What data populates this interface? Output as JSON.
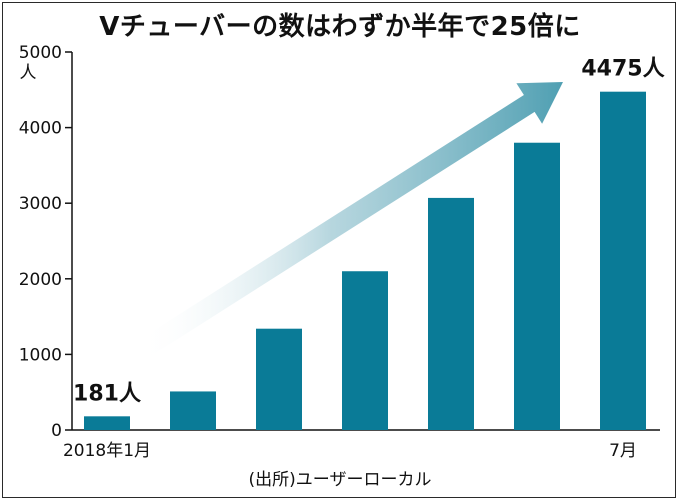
{
  "chart_data": {
    "type": "bar",
    "title": "Vチューバーの数はわずか半年で25倍に",
    "unit_label": "人",
    "categories": [
      "2018年1月",
      "",
      "",
      "",
      "",
      "",
      "7月"
    ],
    "values": [
      181,
      510,
      1340,
      2100,
      3070,
      3800,
      4475
    ],
    "data_labels": [
      {
        "index": 0,
        "text": "181人"
      },
      {
        "index": 6,
        "text": "4475人"
      }
    ],
    "yticks": [
      "0",
      "1000",
      "2000",
      "3000",
      "4000",
      "5000"
    ],
    "ylim": [
      0,
      5000
    ],
    "bar_color": "#0a7b97",
    "arrow_color": "#4f9fb2",
    "source": "(出所)ユーザーローカル",
    "grid": false,
    "legend": "none"
  }
}
